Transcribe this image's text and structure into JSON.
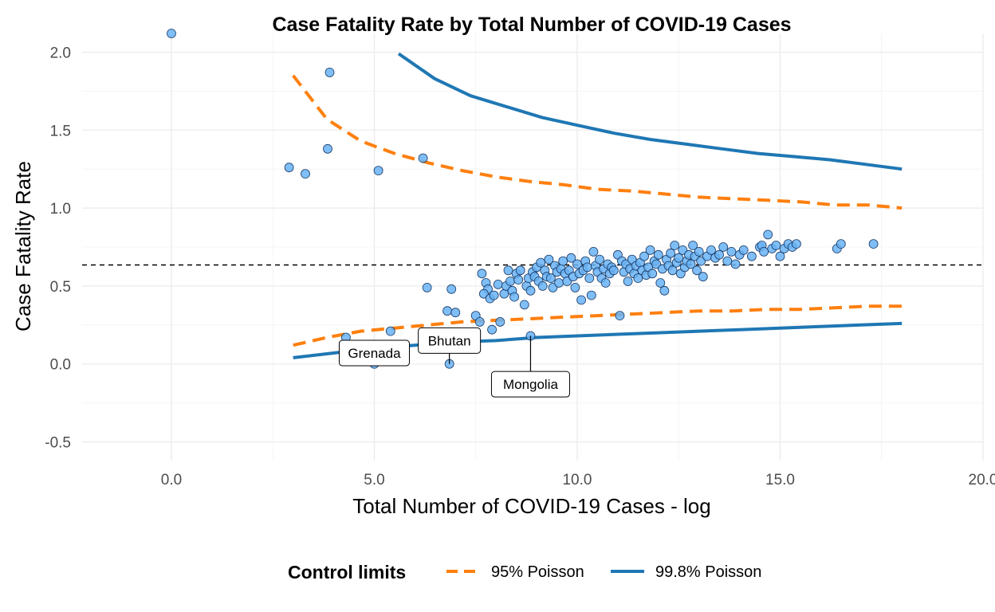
{
  "chart_data": {
    "type": "scatter",
    "title": "Case Fatality Rate by Total Number of COVID-19 Cases",
    "xlabel": "Total Number of COVID-19 Cases - log",
    "ylabel": "Case Fatality Rate",
    "xlim": [
      -2.2,
      20
    ],
    "ylim": [
      -0.62,
      2.12
    ],
    "x_ticks": [
      0,
      5,
      10,
      15,
      20
    ],
    "x_tick_labels": [
      "0.0",
      "5.0",
      "10.0",
      "15.0",
      "20.0"
    ],
    "y_ticks": [
      -0.5,
      0,
      0.5,
      1,
      1.5,
      2
    ],
    "y_tick_labels": [
      "-0.5",
      "0.0",
      "0.5",
      "1.0",
      "1.5",
      "2.0"
    ],
    "grid": true,
    "reference_line": {
      "y": 0.635,
      "style": "dashed",
      "color": "#000000"
    },
    "point_color": "#69b3f5",
    "point_edge_color": "#1a3a66",
    "series": [
      {
        "name": "Countries",
        "points": [
          [
            0.0,
            2.12
          ],
          [
            3.9,
            1.87
          ],
          [
            3.85,
            1.38
          ],
          [
            2.9,
            1.26
          ],
          [
            3.3,
            1.22
          ],
          [
            5.1,
            1.24
          ],
          [
            6.2,
            1.32
          ],
          [
            6.3,
            0.49
          ],
          [
            6.9,
            0.48
          ],
          [
            6.8,
            0.34
          ],
          [
            7.0,
            0.33
          ],
          [
            5.0,
            0.0
          ],
          [
            4.3,
            0.17
          ],
          [
            5.4,
            0.21
          ],
          [
            6.85,
            0.0
          ],
          [
            8.85,
            0.18
          ],
          [
            7.5,
            0.31
          ],
          [
            7.6,
            0.27
          ],
          [
            7.9,
            0.22
          ],
          [
            8.1,
            0.27
          ],
          [
            7.65,
            0.58
          ],
          [
            7.75,
            0.52
          ],
          [
            7.8,
            0.48
          ],
          [
            7.7,
            0.45
          ],
          [
            7.85,
            0.42
          ],
          [
            7.95,
            0.44
          ],
          [
            8.05,
            0.51
          ],
          [
            8.2,
            0.45
          ],
          [
            8.25,
            0.5
          ],
          [
            8.3,
            0.6
          ],
          [
            8.35,
            0.53
          ],
          [
            8.4,
            0.47
          ],
          [
            8.45,
            0.43
          ],
          [
            8.5,
            0.58
          ],
          [
            8.55,
            0.54
          ],
          [
            8.6,
            0.6
          ],
          [
            8.7,
            0.38
          ],
          [
            8.75,
            0.5
          ],
          [
            8.8,
            0.55
          ],
          [
            8.85,
            0.47
          ],
          [
            8.9,
            0.59
          ],
          [
            8.95,
            0.56
          ],
          [
            9.0,
            0.62
          ],
          [
            9.05,
            0.53
          ],
          [
            9.1,
            0.65
          ],
          [
            9.15,
            0.5
          ],
          [
            9.2,
            0.6
          ],
          [
            9.25,
            0.56
          ],
          [
            9.3,
            0.67
          ],
          [
            9.35,
            0.55
          ],
          [
            9.4,
            0.49
          ],
          [
            9.45,
            0.63
          ],
          [
            9.5,
            0.59
          ],
          [
            9.55,
            0.52
          ],
          [
            9.6,
            0.61
          ],
          [
            9.65,
            0.66
          ],
          [
            9.7,
            0.58
          ],
          [
            9.75,
            0.53
          ],
          [
            9.8,
            0.6
          ],
          [
            9.85,
            0.68
          ],
          [
            9.9,
            0.56
          ],
          [
            9.95,
            0.49
          ],
          [
            10.0,
            0.64
          ],
          [
            10.05,
            0.58
          ],
          [
            10.1,
            0.41
          ],
          [
            10.15,
            0.6
          ],
          [
            10.2,
            0.66
          ],
          [
            10.25,
            0.62
          ],
          [
            10.3,
            0.55
          ],
          [
            10.35,
            0.44
          ],
          [
            10.4,
            0.72
          ],
          [
            10.45,
            0.63
          ],
          [
            10.5,
            0.59
          ],
          [
            10.55,
            0.67
          ],
          [
            10.6,
            0.55
          ],
          [
            10.65,
            0.61
          ],
          [
            10.7,
            0.52
          ],
          [
            10.75,
            0.64
          ],
          [
            10.8,
            0.58
          ],
          [
            10.85,
            0.62
          ],
          [
            10.9,
            0.6
          ],
          [
            11.0,
            0.7
          ],
          [
            11.05,
            0.31
          ],
          [
            11.1,
            0.66
          ],
          [
            11.15,
            0.59
          ],
          [
            11.2,
            0.64
          ],
          [
            11.25,
            0.53
          ],
          [
            11.3,
            0.61
          ],
          [
            11.35,
            0.67
          ],
          [
            11.4,
            0.58
          ],
          [
            11.45,
            0.63
          ],
          [
            11.5,
            0.55
          ],
          [
            11.55,
            0.65
          ],
          [
            11.6,
            0.6
          ],
          [
            11.65,
            0.69
          ],
          [
            11.7,
            0.57
          ],
          [
            11.75,
            0.62
          ],
          [
            11.8,
            0.73
          ],
          [
            11.85,
            0.58
          ],
          [
            11.9,
            0.66
          ],
          [
            11.95,
            0.64
          ],
          [
            12.0,
            0.7
          ],
          [
            12.05,
            0.52
          ],
          [
            12.1,
            0.61
          ],
          [
            12.15,
            0.47
          ],
          [
            12.2,
            0.67
          ],
          [
            12.25,
            0.63
          ],
          [
            12.3,
            0.71
          ],
          [
            12.35,
            0.6
          ],
          [
            12.4,
            0.76
          ],
          [
            12.45,
            0.65
          ],
          [
            12.5,
            0.68
          ],
          [
            12.55,
            0.58
          ],
          [
            12.6,
            0.73
          ],
          [
            12.65,
            0.62
          ],
          [
            12.7,
            0.66
          ],
          [
            12.75,
            0.7
          ],
          [
            12.8,
            0.64
          ],
          [
            12.85,
            0.76
          ],
          [
            12.9,
            0.69
          ],
          [
            12.95,
            0.6
          ],
          [
            13.0,
            0.72
          ],
          [
            13.05,
            0.66
          ],
          [
            13.1,
            0.56
          ],
          [
            13.2,
            0.69
          ],
          [
            13.3,
            0.73
          ],
          [
            13.4,
            0.68
          ],
          [
            13.5,
            0.7
          ],
          [
            13.6,
            0.75
          ],
          [
            13.7,
            0.66
          ],
          [
            13.8,
            0.72
          ],
          [
            13.9,
            0.64
          ],
          [
            14.0,
            0.7
          ],
          [
            14.1,
            0.73
          ],
          [
            14.3,
            0.69
          ],
          [
            14.5,
            0.75
          ],
          [
            14.55,
            0.76
          ],
          [
            14.6,
            0.72
          ],
          [
            14.7,
            0.83
          ],
          [
            14.8,
            0.74
          ],
          [
            14.9,
            0.76
          ],
          [
            15.0,
            0.69
          ],
          [
            15.1,
            0.74
          ],
          [
            15.2,
            0.77
          ],
          [
            15.3,
            0.75
          ],
          [
            15.4,
            0.77
          ],
          [
            16.4,
            0.74
          ],
          [
            16.5,
            0.77
          ],
          [
            17.3,
            0.77
          ]
        ]
      }
    ],
    "control_limits": [
      {
        "name": "95% Poisson",
        "color": "#ff7f0e",
        "style": "dashed",
        "upper": {
          "x_start": 3.0,
          "x_end": 18.0,
          "y": [
            1.85,
            1.57,
            1.43,
            1.35,
            1.29,
            1.24,
            1.2,
            1.17,
            1.15,
            1.12,
            1.11,
            1.09,
            1.07,
            1.06,
            1.05,
            1.04,
            1.02,
            1.02,
            1.0
          ]
        },
        "lower": {
          "x_start": 3.0,
          "x_end": 18.0,
          "y": [
            0.12,
            0.17,
            0.21,
            0.23,
            0.25,
            0.27,
            0.28,
            0.29,
            0.3,
            0.31,
            0.32,
            0.33,
            0.34,
            0.34,
            0.35,
            0.35,
            0.36,
            0.37,
            0.37
          ]
        }
      },
      {
        "name": "99.8% Poisson",
        "color": "#1f77b4",
        "style": "solid",
        "upper": {
          "x_start": 5.6,
          "x_end": 18.0,
          "y": [
            1.99,
            1.83,
            1.72,
            1.65,
            1.58,
            1.53,
            1.48,
            1.44,
            1.41,
            1.38,
            1.35,
            1.33,
            1.31,
            1.28,
            1.25
          ]
        },
        "lower": {
          "x_start": 3.0,
          "x_end": 18.0,
          "y": [
            0.04,
            0.07,
            0.1,
            0.12,
            0.14,
            0.15,
            0.17,
            0.18,
            0.19,
            0.2,
            0.21,
            0.22,
            0.23,
            0.24,
            0.25,
            0.26
          ]
        }
      }
    ],
    "annotations": [
      {
        "text": "Grenada",
        "x": 5.0,
        "y": 0.0,
        "label_x": 5.0,
        "label_y": 0.07
      },
      {
        "text": "Bhutan",
        "x": 6.85,
        "y": 0.0,
        "label_x": 6.85,
        "label_y": 0.15
      },
      {
        "text": "Mongolia",
        "x": 8.85,
        "y": 0.18,
        "label_x": 8.85,
        "label_y": -0.13
      }
    ],
    "legend": {
      "title": "Control limits",
      "placement": "bottom",
      "items": [
        {
          "label": "95% Poisson",
          "color": "#ff7f0e",
          "style": "dashed"
        },
        {
          "label": "99.8% Poisson",
          "color": "#1f77b4",
          "style": "solid"
        }
      ]
    }
  }
}
